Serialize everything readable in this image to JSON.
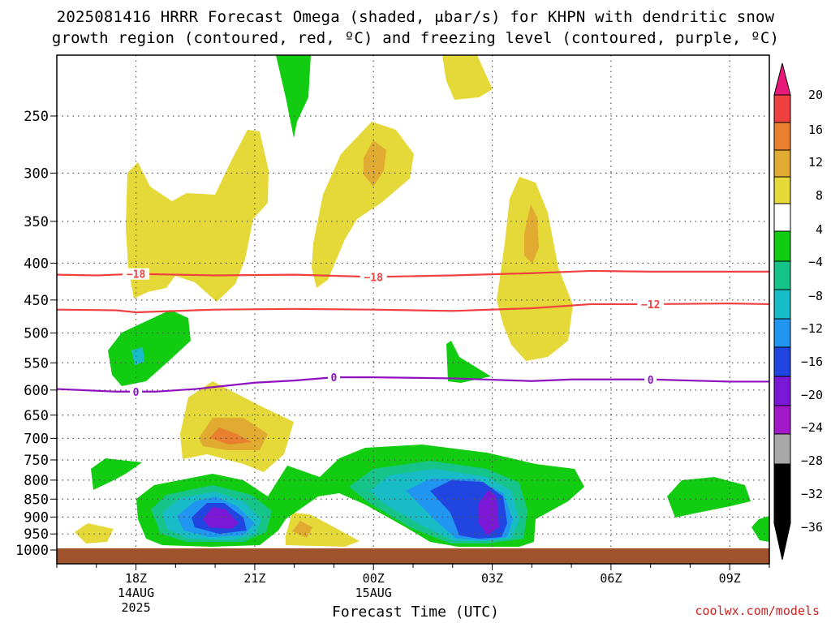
{
  "title_line1": "2025081416 HRRR Forecast Omega (shaded, μbar/s) for KHPN with dendritic snow",
  "title_line2": "growth region (contoured, red, ºC) and freezing level (contoured, purple, ºC)",
  "credit": "coolwx.com/models",
  "chart_data": {
    "type": "contour",
    "xlabel": "Forecast Time (UTC)",
    "ylabel": "",
    "y_scale": "log-pressure (hPa, inverted)",
    "ylim": [
      1000,
      200
    ],
    "y_ticks": [
      250,
      300,
      350,
      400,
      450,
      500,
      550,
      600,
      650,
      700,
      750,
      800,
      850,
      900,
      950,
      1000
    ],
    "x_ticks": [
      {
        "hour": 18,
        "label": "18Z",
        "label2": "14AUG",
        "label3": "2025"
      },
      {
        "hour": 21,
        "label": "21Z",
        "label2": "",
        "label3": ""
      },
      {
        "hour": 24,
        "label": "00Z",
        "label2": "15AUG",
        "label3": ""
      },
      {
        "hour": 27,
        "label": "03Z",
        "label2": "",
        "label3": ""
      },
      {
        "hour": 30,
        "label": "06Z",
        "label2": "",
        "label3": ""
      },
      {
        "hour": 33,
        "label": "09Z",
        "label2": "",
        "label3": ""
      }
    ],
    "xlim_hours": [
      16,
      34
    ],
    "grid": "dotted",
    "colorbar": {
      "labels": [
        "20",
        "16",
        "12",
        "8",
        "4",
        "−4",
        "−8",
        "−12",
        "−16",
        "−20",
        "−24",
        "−28",
        "−32",
        "−36"
      ],
      "colors_top_to_bottom": [
        "#e8187a",
        "#ef4040",
        "#e98030",
        "#e0ab30",
        "#e5d839",
        "#ffffff",
        "#11cc11",
        "#16c48a",
        "#18bcc6",
        "#2096f0",
        "#2045e0",
        "#7a18d6",
        "#a319c9",
        "#a8a8a8",
        "#000000"
      ]
    },
    "contours": [
      {
        "name": "-18",
        "color": "#f04040",
        "points": [
          [
            16,
            415
          ],
          [
            17,
            416
          ],
          [
            18,
            414
          ],
          [
            20,
            416
          ],
          [
            22,
            415
          ],
          [
            24,
            418
          ],
          [
            26,
            416
          ],
          [
            28,
            413
          ],
          [
            29.5,
            410
          ],
          [
            31,
            411
          ],
          [
            34,
            411
          ]
        ],
        "labels_at": [
          18,
          24
        ]
      },
      {
        "name": "-12",
        "color": "#f04040",
        "points": [
          [
            16,
            464
          ],
          [
            17.5,
            465
          ],
          [
            18,
            468
          ],
          [
            20,
            464
          ],
          [
            22,
            463
          ],
          [
            24,
            464
          ],
          [
            26,
            466
          ],
          [
            28,
            462
          ],
          [
            29.5,
            456
          ],
          [
            31,
            456
          ],
          [
            33,
            455
          ],
          [
            34,
            456
          ]
        ],
        "labels_at": [
          31
        ]
      },
      {
        "name": "0",
        "color": "#9010c0",
        "points": [
          [
            16,
            598
          ],
          [
            17.5,
            603
          ],
          [
            18.5,
            603
          ],
          [
            19.5,
            598
          ],
          [
            21,
            586
          ],
          [
            22,
            582
          ],
          [
            23,
            576
          ],
          [
            24,
            576
          ],
          [
            26,
            578
          ],
          [
            28,
            583
          ],
          [
            29,
            580
          ],
          [
            31,
            580
          ],
          [
            33,
            584
          ],
          [
            34,
            584
          ]
        ],
        "labels_at": [
          18,
          23,
          31
        ]
      }
    ],
    "shaded_regions": [
      {
        "level": "4 to 8",
        "color": "#e5d839"
      },
      {
        "level": "8 to 12",
        "color": "#e0ab30"
      },
      {
        "level": "12 to 16",
        "color": "#e98030"
      },
      {
        "level": "-4 to -8",
        "color": "#11cc11"
      },
      {
        "level": "-8 to -12",
        "color": "#16c48a"
      },
      {
        "level": "-12 to -16",
        "color": "#18bcc6"
      },
      {
        "level": "-16 to -20",
        "color": "#2096f0"
      },
      {
        "level": "-20 to -24",
        "color": "#2045e0"
      },
      {
        "level": "-24 to -28",
        "color": "#7a18d6"
      }
    ],
    "ground_color": "#a0522d"
  }
}
